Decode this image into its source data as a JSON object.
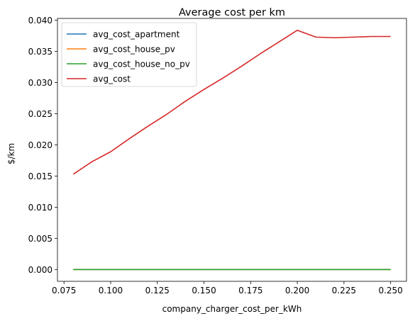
{
  "chart_data": {
    "type": "line",
    "title": "Average cost per km",
    "xlabel": "company_charger_cost_per_kWh",
    "ylabel": "$/km",
    "xlim": [
      0.0715,
      0.2585
    ],
    "ylim": [
      -0.0019,
      0.0403
    ],
    "x_ticks": [
      "0.075",
      "0.100",
      "0.125",
      "0.150",
      "0.175",
      "0.200",
      "0.225",
      "0.250"
    ],
    "x_tick_values": [
      0.075,
      0.1,
      0.125,
      0.15,
      0.175,
      0.2,
      0.225,
      0.25
    ],
    "y_ticks": [
      "0.000",
      "0.005",
      "0.010",
      "0.015",
      "0.020",
      "0.025",
      "0.030",
      "0.035",
      "0.040"
    ],
    "y_tick_values": [
      0.0,
      0.005,
      0.01,
      0.015,
      0.02,
      0.025,
      0.03,
      0.035,
      0.04
    ],
    "grid": false,
    "legend_position": "top-left",
    "x": [
      0.08,
      0.09,
      0.1,
      0.11,
      0.12,
      0.13,
      0.14,
      0.15,
      0.16,
      0.17,
      0.18,
      0.19,
      0.2,
      0.21,
      0.22,
      0.23,
      0.24,
      0.25
    ],
    "series": [
      {
        "name": "avg_cost_apartment",
        "color": "#1f77b4",
        "values": [
          0,
          0,
          0,
          0,
          0,
          0,
          0,
          0,
          0,
          0,
          0,
          0,
          0,
          0,
          0,
          0,
          0,
          0
        ]
      },
      {
        "name": "avg_cost_house_pv",
        "color": "#ff7f0e",
        "values": [
          0,
          0,
          0,
          0,
          0,
          0,
          0,
          0,
          0,
          0,
          0,
          0,
          0,
          0,
          0,
          0,
          0,
          0
        ]
      },
      {
        "name": "avg_cost_house_no_pv",
        "color": "#2ca02c",
        "values": [
          0,
          0,
          0,
          0,
          0,
          0,
          0,
          0,
          0,
          0,
          0,
          0,
          0,
          0,
          0,
          0,
          0,
          0
        ]
      },
      {
        "name": "avg_cost",
        "color": "#d62728",
        "values": [
          0.0153,
          0.0173,
          0.0189,
          0.021,
          0.023,
          0.0249,
          0.027,
          0.0289,
          0.0307,
          0.0326,
          0.0346,
          0.0365,
          0.0384,
          0.0373,
          0.0372,
          0.0373,
          0.0374,
          0.0374
        ]
      }
    ]
  }
}
